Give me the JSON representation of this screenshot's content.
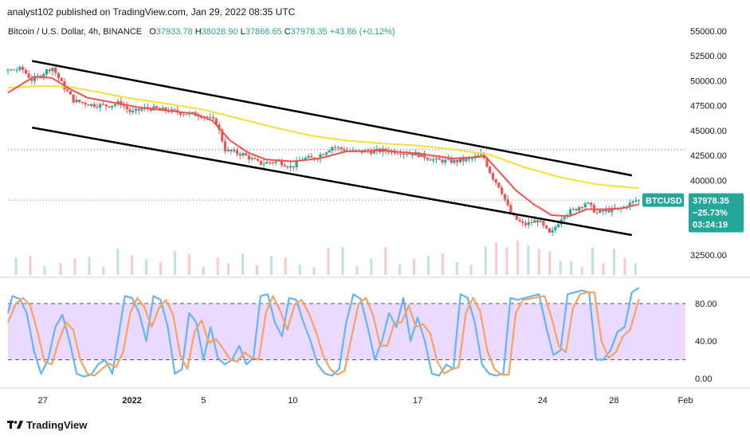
{
  "header": {
    "published": "analyst102 published on TradingView.com, Jan 29, 2022 08:35 UTC"
  },
  "legend": {
    "symbol": "Bitcoin / U.S. Dollar, 4h, BINANCE",
    "o_label": "O",
    "o_value": "37933.78",
    "h_label": "H",
    "h_value": "38028.90",
    "l_label": "L",
    "l_value": "37866.65",
    "c_label": "C",
    "c_value": "37978.35",
    "change": "+43.86 (+0.12%)"
  },
  "price_tag": {
    "symbol": "BTCUSD",
    "price": "37978.35",
    "pct": "−25.73%",
    "countdown": "03:24:19"
  },
  "footer": {
    "brand": "TradingView"
  },
  "colors": {
    "up": "#26a69a",
    "down": "#ef5350",
    "ma_fast": "#ef5350",
    "ma_slow": "#f5e03a",
    "stoch_k": "#64b5f6",
    "stoch_d": "#f4a460",
    "stoch_band": "#e9d5ff",
    "price_tag": "#26a69a"
  },
  "chart_data": [
    {
      "type": "candlestick",
      "title": "Bitcoin / U.S. Dollar, 4h, BINANCE",
      "y_ticks": [
        "55000.00",
        "52500.00",
        "50000.00",
        "47500.00",
        "45000.00",
        "42500.00",
        "40000.00",
        "32500.00"
      ],
      "ylim": [
        31500,
        55500
      ],
      "x_ticks": [
        "27",
        "2022",
        "5",
        "10",
        "17",
        "24",
        "28",
        "Feb"
      ],
      "x_tick_days": [
        27,
        32,
        36,
        41,
        48,
        55,
        59,
        63
      ],
      "xlim": [
        25.05,
        63.0
      ],
      "grid": false,
      "horizontal_dotted_levels": [
        43100,
        38000
      ],
      "last_close": 37978.35,
      "close_path": [
        {
          "day": 25.05,
          "close": 51000
        },
        {
          "day": 26.0,
          "close": 51200
        },
        {
          "day": 26.6,
          "close": 50000
        },
        {
          "day": 27.2,
          "close": 50800
        },
        {
          "day": 27.7,
          "close": 51400
        },
        {
          "day": 28.3,
          "close": 49500
        },
        {
          "day": 28.9,
          "close": 48000
        },
        {
          "day": 29.9,
          "close": 47600
        },
        {
          "day": 30.8,
          "close": 47500
        },
        {
          "day": 31.5,
          "close": 47800
        },
        {
          "day": 32.1,
          "close": 46800
        },
        {
          "day": 33.0,
          "close": 47300
        },
        {
          "day": 34.2,
          "close": 47000
        },
        {
          "day": 35.3,
          "close": 46700
        },
        {
          "day": 36.2,
          "close": 46500
        },
        {
          "day": 36.9,
          "close": 45800
        },
        {
          "day": 37.4,
          "close": 43000
        },
        {
          "day": 38.4,
          "close": 42600
        },
        {
          "day": 39.3,
          "close": 41700
        },
        {
          "day": 40.4,
          "close": 41900
        },
        {
          "day": 41.1,
          "close": 41300
        },
        {
          "day": 41.7,
          "close": 42200
        },
        {
          "day": 42.4,
          "close": 42200
        },
        {
          "day": 43.4,
          "close": 43400
        },
        {
          "day": 44.4,
          "close": 42900
        },
        {
          "day": 45.4,
          "close": 42900
        },
        {
          "day": 46.4,
          "close": 43000
        },
        {
          "day": 47.4,
          "close": 42800
        },
        {
          "day": 48.2,
          "close": 42600
        },
        {
          "day": 49.2,
          "close": 42000
        },
        {
          "day": 50.2,
          "close": 41900
        },
        {
          "day": 51.1,
          "close": 42100
        },
        {
          "day": 51.8,
          "close": 42600
        },
        {
          "day": 52.3,
          "close": 40500
        },
        {
          "day": 52.8,
          "close": 39200
        },
        {
          "day": 53.4,
          "close": 36500
        },
        {
          "day": 54.1,
          "close": 35500
        },
        {
          "day": 54.9,
          "close": 36000
        },
        {
          "day": 55.6,
          "close": 34500
        },
        {
          "day": 56.3,
          "close": 36500
        },
        {
          "day": 57.0,
          "close": 37100
        },
        {
          "day": 57.6,
          "close": 37800
        },
        {
          "day": 58.2,
          "close": 36700
        },
        {
          "day": 58.8,
          "close": 37000
        },
        {
          "day": 59.4,
          "close": 37000
        },
        {
          "day": 60.0,
          "close": 37600
        },
        {
          "day": 60.4,
          "close": 37978.35
        }
      ],
      "moving_average_fast": [
        {
          "day": 25.05,
          "value": 48800
        },
        {
          "day": 26.5,
          "value": 50400
        },
        {
          "day": 27.5,
          "value": 50300
        },
        {
          "day": 28.5,
          "value": 49200
        },
        {
          "day": 29.5,
          "value": 48300
        },
        {
          "day": 31,
          "value": 47800
        },
        {
          "day": 32.5,
          "value": 47300
        },
        {
          "day": 34,
          "value": 47000
        },
        {
          "day": 35.5,
          "value": 46700
        },
        {
          "day": 36.5,
          "value": 46000
        },
        {
          "day": 37.5,
          "value": 44000
        },
        {
          "day": 38.5,
          "value": 42800
        },
        {
          "day": 39.5,
          "value": 42100
        },
        {
          "day": 41,
          "value": 41900
        },
        {
          "day": 42.5,
          "value": 42200
        },
        {
          "day": 44,
          "value": 42900
        },
        {
          "day": 46,
          "value": 43000
        },
        {
          "day": 48,
          "value": 42700
        },
        {
          "day": 50,
          "value": 42200
        },
        {
          "day": 51.8,
          "value": 42400
        },
        {
          "day": 52.5,
          "value": 41000
        },
        {
          "day": 53.5,
          "value": 39000
        },
        {
          "day": 54.5,
          "value": 37600
        },
        {
          "day": 55.5,
          "value": 36500
        },
        {
          "day": 56.5,
          "value": 36400
        },
        {
          "day": 57.5,
          "value": 37100
        },
        {
          "day": 58.5,
          "value": 37100
        },
        {
          "day": 59.5,
          "value": 37200
        },
        {
          "day": 60.4,
          "value": 37600
        }
      ],
      "moving_average_slow": [
        {
          "day": 25.05,
          "value": 49300
        },
        {
          "day": 27,
          "value": 49500
        },
        {
          "day": 28.5,
          "value": 49400
        },
        {
          "day": 30,
          "value": 48900
        },
        {
          "day": 32,
          "value": 48200
        },
        {
          "day": 34,
          "value": 47700
        },
        {
          "day": 36,
          "value": 47100
        },
        {
          "day": 38,
          "value": 46200
        },
        {
          "day": 40,
          "value": 45300
        },
        {
          "day": 42,
          "value": 44500
        },
        {
          "day": 44,
          "value": 44000
        },
        {
          "day": 46,
          "value": 43700
        },
        {
          "day": 48,
          "value": 43500
        },
        {
          "day": 50,
          "value": 43100
        },
        {
          "day": 52,
          "value": 42600
        },
        {
          "day": 54,
          "value": 41300
        },
        {
          "day": 56,
          "value": 40300
        },
        {
          "day": 58,
          "value": 39600
        },
        {
          "day": 60.4,
          "value": 39200
        }
      ],
      "channel_lines": [
        {
          "from": {
            "day": 26.4,
            "price": 52000
          },
          "to": {
            "day": 60.0,
            "price": 40500
          }
        },
        {
          "from": {
            "day": 26.4,
            "price": 45300
          },
          "to": {
            "day": 60.0,
            "price": 34500
          }
        }
      ],
      "volume_bars": [
        {
          "day": 25.5,
          "up": true
        },
        {
          "day": 26.3,
          "up": false
        },
        {
          "day": 27.1,
          "up": true
        },
        {
          "day": 28.0,
          "up": false
        },
        {
          "day": 28.8,
          "up": false
        },
        {
          "day": 29.6,
          "up": true
        },
        {
          "day": 30.4,
          "up": false
        },
        {
          "day": 31.2,
          "up": true
        },
        {
          "day": 32.0,
          "up": false
        },
        {
          "day": 32.8,
          "up": true
        },
        {
          "day": 33.6,
          "up": false
        },
        {
          "day": 34.4,
          "up": true
        },
        {
          "day": 35.2,
          "up": false
        },
        {
          "day": 36.0,
          "up": true
        },
        {
          "day": 36.8,
          "up": false
        },
        {
          "day": 37.4,
          "up": false
        },
        {
          "day": 38.2,
          "up": true
        },
        {
          "day": 39.0,
          "up": false
        },
        {
          "day": 39.8,
          "up": true
        },
        {
          "day": 40.6,
          "up": false
        },
        {
          "day": 41.4,
          "up": true
        },
        {
          "day": 42.2,
          "up": true
        },
        {
          "day": 43.0,
          "up": false
        },
        {
          "day": 43.8,
          "up": true
        },
        {
          "day": 44.6,
          "up": false
        },
        {
          "day": 45.4,
          "up": true
        },
        {
          "day": 46.2,
          "up": false
        },
        {
          "day": 47.0,
          "up": true
        },
        {
          "day": 47.8,
          "up": false
        },
        {
          "day": 48.6,
          "up": true
        },
        {
          "day": 49.4,
          "up": false
        },
        {
          "day": 50.2,
          "up": true
        },
        {
          "day": 51.0,
          "up": false
        },
        {
          "day": 51.8,
          "up": true
        },
        {
          "day": 52.4,
          "up": false
        },
        {
          "day": 53.0,
          "up": false
        },
        {
          "day": 53.6,
          "up": false
        },
        {
          "day": 54.2,
          "up": true
        },
        {
          "day": 54.8,
          "up": false
        },
        {
          "day": 55.4,
          "up": false
        },
        {
          "day": 56.0,
          "up": true
        },
        {
          "day": 56.6,
          "up": true
        },
        {
          "day": 57.2,
          "up": false
        },
        {
          "day": 57.8,
          "up": true
        },
        {
          "day": 58.4,
          "up": false
        },
        {
          "day": 59.0,
          "up": true
        },
        {
          "day": 59.6,
          "up": false
        },
        {
          "day": 60.2,
          "up": true
        }
      ]
    },
    {
      "type": "line",
      "indicator": "stochastic",
      "y_ticks": [
        "80.00",
        "40.00",
        "0.00"
      ],
      "ylim": [
        -8,
        105
      ],
      "band": [
        20,
        80
      ],
      "xlim": [
        25.05,
        63.0
      ],
      "series": [
        {
          "role": "k",
          "x": [
            25.05,
            25.3,
            25.7,
            26.1,
            26.5,
            26.9,
            27.3,
            27.7,
            28.1,
            28.5,
            28.9,
            29.3,
            29.7,
            30.1,
            30.5,
            30.9,
            31.2,
            31.6,
            32.0,
            32.4,
            32.8,
            33.2,
            33.6,
            34.0,
            34.4,
            34.8,
            35.2,
            35.6,
            36.0,
            36.4,
            36.8,
            37.2,
            37.6,
            38.0,
            38.4,
            38.8,
            39.2,
            39.6,
            40.0,
            40.4,
            40.8,
            41.2,
            41.6,
            42.0,
            42.4,
            42.8,
            43.2,
            43.6,
            44.0,
            44.4,
            44.8,
            45.2,
            45.6,
            46.0,
            46.4,
            46.8,
            47.2,
            47.6,
            48.0,
            48.4,
            48.8,
            49.2,
            49.6,
            50.0,
            50.4,
            50.8,
            51.2,
            51.6,
            52.0,
            52.4,
            52.8,
            53.2,
            53.6,
            54.0,
            54.4,
            54.8,
            55.2,
            55.6,
            56.0,
            56.4,
            56.8,
            57.2,
            57.6,
            58.0,
            58.4,
            58.8,
            59.2,
            59.6,
            60.0,
            60.4
          ],
          "values": [
            70,
            88,
            85,
            70,
            30,
            5,
            20,
            55,
            68,
            40,
            5,
            2,
            4,
            15,
            20,
            5,
            40,
            88,
            86,
            70,
            40,
            88,
            84,
            55,
            5,
            10,
            70,
            60,
            20,
            55,
            22,
            15,
            20,
            35,
            15,
            22,
            88,
            90,
            60,
            45,
            86,
            84,
            60,
            40,
            15,
            5,
            3,
            10,
            60,
            90,
            85,
            55,
            20,
            40,
            70,
            55,
            86,
            40,
            65,
            40,
            5,
            3,
            15,
            10,
            90,
            86,
            60,
            15,
            5,
            3,
            5,
            86,
            84,
            86,
            88,
            90,
            55,
            25,
            30,
            90,
            92,
            94,
            92,
            20,
            20,
            30,
            50,
            55,
            92,
            97
          ]
        },
        {
          "role": "d",
          "x": [
            25.05,
            25.5,
            25.9,
            26.3,
            26.7,
            27.1,
            27.5,
            27.9,
            28.3,
            28.7,
            29.1,
            29.5,
            29.9,
            30.3,
            30.7,
            31.1,
            31.5,
            31.9,
            32.3,
            32.7,
            33.1,
            33.5,
            33.9,
            34.3,
            34.7,
            35.1,
            35.5,
            35.9,
            36.3,
            36.7,
            37.1,
            37.5,
            37.9,
            38.3,
            38.7,
            39.1,
            39.5,
            39.9,
            40.3,
            40.7,
            41.1,
            41.5,
            41.9,
            42.3,
            42.7,
            43.1,
            43.5,
            43.9,
            44.3,
            44.7,
            45.1,
            45.5,
            45.9,
            46.3,
            46.7,
            47.1,
            47.5,
            47.9,
            48.3,
            48.7,
            49.1,
            49.5,
            49.9,
            50.3,
            50.7,
            51.1,
            51.5,
            51.9,
            52.3,
            52.7,
            53.1,
            53.5,
            53.9,
            54.3,
            54.7,
            55.1,
            55.5,
            55.9,
            56.3,
            56.7,
            57.1,
            57.5,
            57.9,
            58.3,
            58.7,
            59.1,
            59.5,
            59.9,
            60.4
          ],
          "values": [
            60,
            80,
            86,
            78,
            50,
            18,
            15,
            40,
            60,
            52,
            20,
            5,
            3,
            10,
            16,
            12,
            28,
            70,
            86,
            76,
            55,
            75,
            84,
            68,
            25,
            10,
            50,
            62,
            38,
            42,
            32,
            20,
            18,
            28,
            22,
            20,
            70,
            88,
            72,
            52,
            78,
            84,
            70,
            50,
            25,
            10,
            4,
            8,
            45,
            80,
            86,
            68,
            35,
            35,
            60,
            60,
            78,
            55,
            58,
            48,
            18,
            5,
            10,
            12,
            70,
            86,
            72,
            30,
            10,
            4,
            4,
            70,
            84,
            85,
            87,
            88,
            65,
            35,
            28,
            75,
            90,
            92,
            92,
            40,
            22,
            28,
            45,
            52,
            85
          ]
        }
      ]
    }
  ]
}
